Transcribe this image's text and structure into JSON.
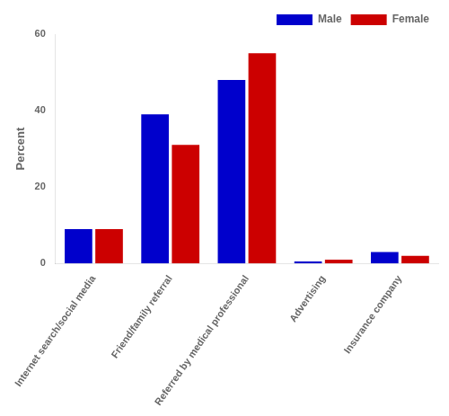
{
  "chart_data": {
    "type": "bar",
    "categories": [
      "Internet search/social media",
      "Friend/family referral",
      "Referred by medical professional",
      "Advertising",
      "Insurance company"
    ],
    "series": [
      {
        "name": "Male",
        "color": "#0000CC",
        "values": [
          9,
          39,
          48,
          0.5,
          3
        ]
      },
      {
        "name": "Female",
        "color": "#CC0000",
        "values": [
          9,
          31,
          55,
          1,
          2
        ]
      }
    ],
    "ylabel": "Percent",
    "ylim": [
      0,
      60
    ],
    "yticks": [
      0,
      20,
      40,
      60
    ],
    "grid": false,
    "legend": "upper right"
  }
}
